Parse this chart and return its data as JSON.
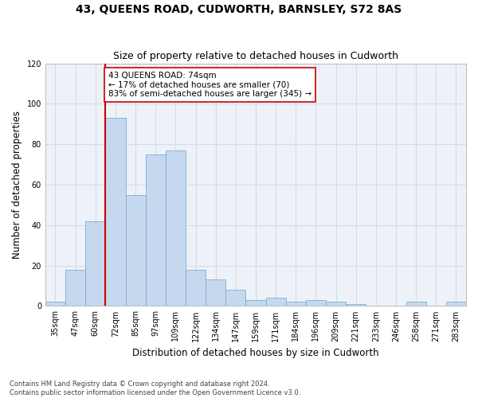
{
  "title": "43, QUEENS ROAD, CUDWORTH, BARNSLEY, S72 8AS",
  "subtitle": "Size of property relative to detached houses in Cudworth",
  "xlabel": "Distribution of detached houses by size in Cudworth",
  "ylabel": "Number of detached properties",
  "bar_color": "#c5d8ee",
  "bar_edge_color": "#7bafd4",
  "grid_color": "#d0dcea",
  "background_color": "#eef2f8",
  "categories": [
    "35sqm",
    "47sqm",
    "60sqm",
    "72sqm",
    "85sqm",
    "97sqm",
    "109sqm",
    "122sqm",
    "134sqm",
    "147sqm",
    "159sqm",
    "171sqm",
    "184sqm",
    "196sqm",
    "209sqm",
    "221sqm",
    "233sqm",
    "246sqm",
    "258sqm",
    "271sqm",
    "283sqm"
  ],
  "values": [
    2,
    18,
    42,
    93,
    55,
    75,
    77,
    18,
    13,
    8,
    3,
    4,
    2,
    3,
    2,
    1,
    0,
    0,
    2,
    0,
    2
  ],
  "ylim": [
    0,
    120
  ],
  "yticks": [
    0,
    20,
    40,
    60,
    80,
    100,
    120
  ],
  "vline_x": 2.5,
  "vline_color": "#cc0000",
  "annotation_text": "43 QUEENS ROAD: 74sqm\n← 17% of detached houses are smaller (70)\n83% of semi-detached houses are larger (345) →",
  "annotation_box_color": "#ffffff",
  "annotation_box_edge": "#cc0000",
  "footer": "Contains HM Land Registry data © Crown copyright and database right 2024.\nContains public sector information licensed under the Open Government Licence v3.0.",
  "title_fontsize": 10,
  "subtitle_fontsize": 9,
  "xlabel_fontsize": 8.5,
  "ylabel_fontsize": 8.5,
  "tick_fontsize": 7,
  "annotation_fontsize": 7.5,
  "footer_fontsize": 6
}
